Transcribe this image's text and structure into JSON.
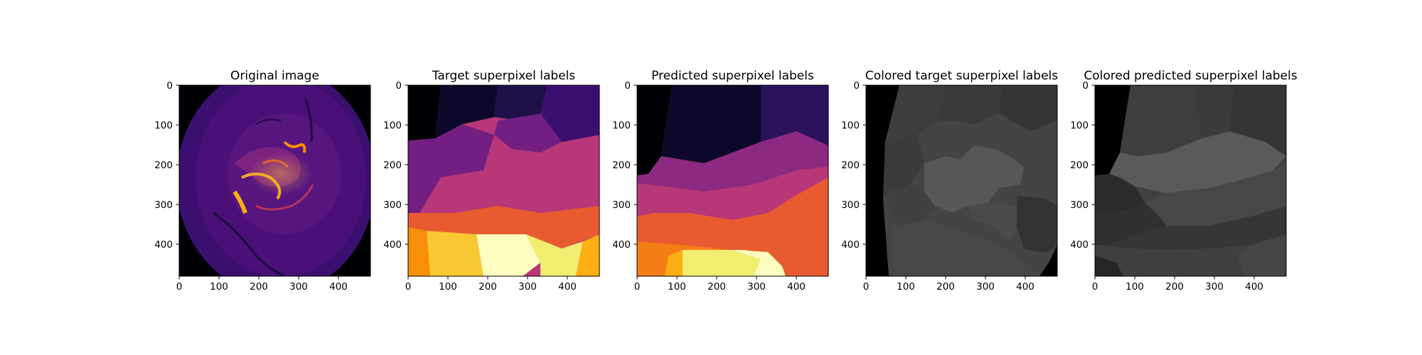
{
  "chart_data": [
    {
      "type": "heatmap",
      "id": "original",
      "title": "Original image",
      "colormap": "inferno",
      "xlim": [
        0,
        480
      ],
      "ylim": [
        480,
        0
      ],
      "xticks": [
        0,
        100,
        200,
        300,
        400
      ],
      "yticks": [
        0,
        100,
        200,
        300,
        400
      ]
    },
    {
      "type": "heatmap",
      "id": "target",
      "title": "Target superpixel labels",
      "colormap": "inferno",
      "xlim": [
        0,
        480
      ],
      "ylim": [
        480,
        0
      ],
      "xticks": [
        0,
        100,
        200,
        300,
        400
      ],
      "yticks": [
        0,
        100,
        200,
        300,
        400
      ]
    },
    {
      "type": "heatmap",
      "id": "predicted",
      "title": "Predicted superpixel labels",
      "colormap": "inferno",
      "xlim": [
        0,
        480
      ],
      "ylim": [
        480,
        0
      ],
      "xticks": [
        0,
        100,
        200,
        300,
        400
      ],
      "yticks": [
        0,
        100,
        200,
        300,
        400
      ]
    },
    {
      "type": "heatmap",
      "id": "colored_target",
      "title": "Colored target superpixel labels",
      "colormap": "gray",
      "xlim": [
        0,
        480
      ],
      "ylim": [
        480,
        0
      ],
      "xticks": [
        0,
        100,
        200,
        300,
        400
      ],
      "yticks": [
        0,
        100,
        200,
        300,
        400
      ]
    },
    {
      "type": "heatmap",
      "id": "colored_predicted",
      "title": "Colored predicted superpixel labels",
      "colormap": "gray",
      "xlim": [
        0,
        480
      ],
      "ylim": [
        480,
        0
      ],
      "xticks": [
        0,
        100,
        200,
        300,
        400
      ],
      "yticks": [
        0,
        100,
        200,
        300,
        400
      ]
    }
  ]
}
